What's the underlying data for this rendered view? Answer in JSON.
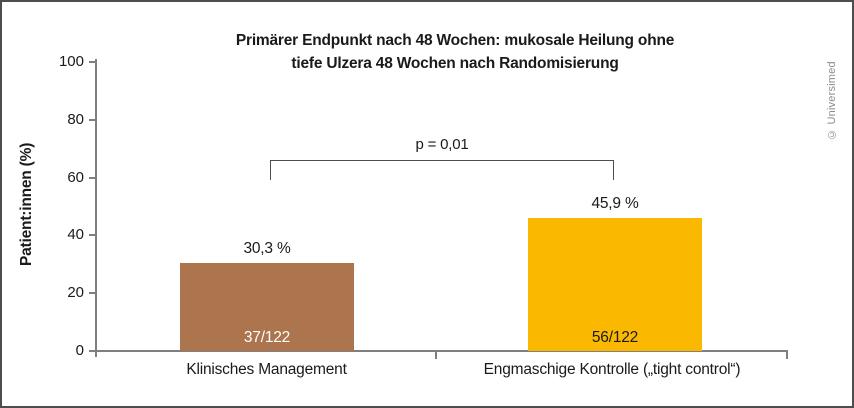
{
  "figure": {
    "copyright": "© Universimed"
  },
  "chart_data": {
    "type": "bar",
    "title": "Primärer Endpunkt nach 48 Wochen: mukosale Heilung ohne tiefe Ulzera 48 Wochen nach Randomisierung",
    "title_lines": [
      "Primärer Endpunkt nach 48 Wochen: mukosale Heilung ohne",
      "tiefe Ulzera 48 Wochen nach Randomisierung"
    ],
    "xlabel": "",
    "ylabel": "Patient:innen (%)",
    "ylim": [
      0,
      100
    ],
    "ytick_labels": [
      "100",
      "80",
      "60",
      "40",
      "20",
      "0"
    ],
    "grid": false,
    "legend": false,
    "categories": [
      "Klinisches Management",
      "Engmaschige Kontrolle („tight control“)"
    ],
    "values": [
      30.3,
      45.9
    ],
    "bars": [
      {
        "label": "Klinisches Management",
        "value_pct": 30.3,
        "value_label": "30,3 %",
        "fraction_label": "37/122",
        "numerator": 37,
        "denominator": 122,
        "color": "#AD754D",
        "fraction_text_color": "#ffffff"
      },
      {
        "label": "Engmaschige Kontrolle („tight control“)",
        "value_pct": 45.9,
        "value_label": "45,9 %",
        "fraction_label": "56/122",
        "numerator": 56,
        "denominator": 122,
        "color": "#FAB900",
        "fraction_text_color": "#1a1a1a"
      }
    ],
    "annotation": {
      "p_value_label": "p = 0,01",
      "connects": [
        "Klinisches Management",
        "Engmaschige Kontrolle („tight control“)"
      ]
    },
    "colors": {
      "axis": "#7f7f7f",
      "bracket": "#4d4d4d",
      "text": "#1a1a1a",
      "copyright_text": "#8c8c8c",
      "border": "#4d4d4d",
      "background": "#ffffff"
    }
  }
}
